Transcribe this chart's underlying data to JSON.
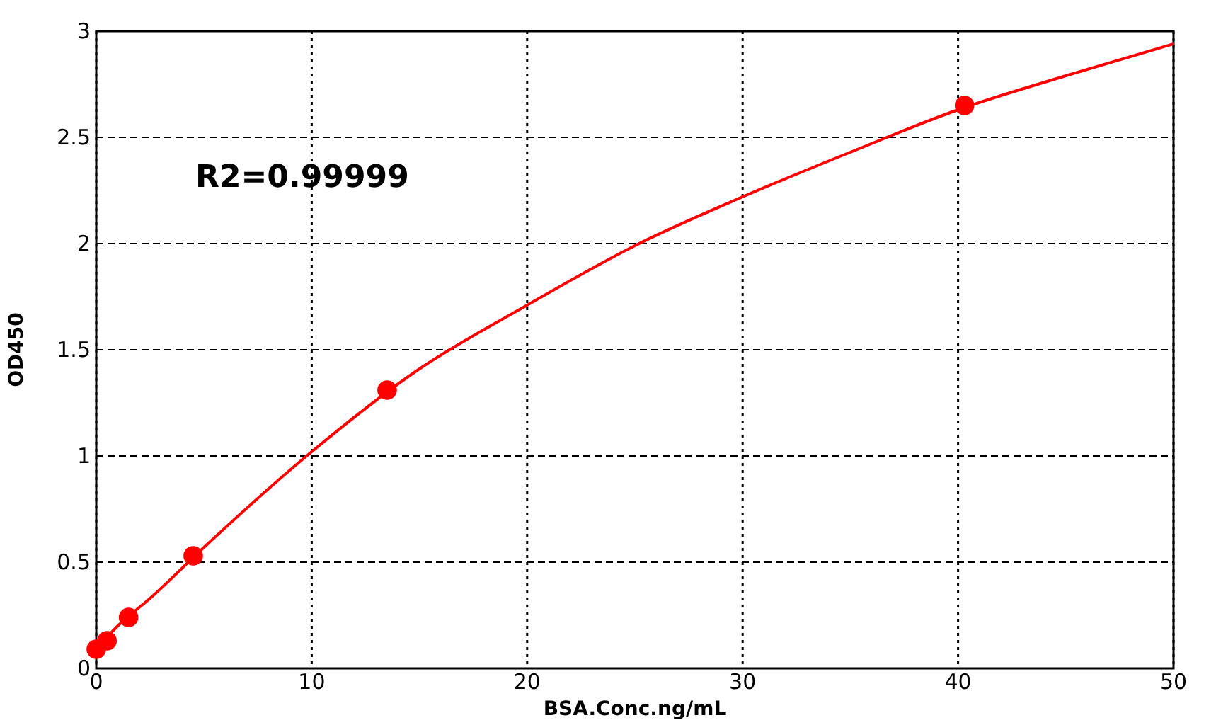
{
  "chart_data": {
    "type": "scatter",
    "xlabel": "BSA.Conc.ng/mL",
    "ylabel": "OD450",
    "xlim": [
      0,
      50
    ],
    "xticks": [
      0,
      10,
      20,
      30,
      40,
      50
    ],
    "ylim": [
      0,
      3
    ],
    "yticks": [
      0,
      0.5,
      1,
      1.5,
      2,
      2.5,
      3
    ],
    "grid": true,
    "annotations": [
      "R2=0.99999"
    ],
    "series": [
      {
        "type": "line",
        "color": "#ff0000",
        "marker": "none",
        "line_style": "solid",
        "x": [
          0,
          1,
          2.5,
          5,
          10,
          15,
          20,
          25,
          30,
          35,
          40,
          45,
          50
        ],
        "values": [
          0.09,
          0.2,
          0.33,
          0.57,
          1.02,
          1.41,
          1.71,
          1.99,
          2.22,
          2.43,
          2.63,
          2.79,
          2.94
        ]
      },
      {
        "color": "#ff0000",
        "marker": "circle",
        "x": [
          0,
          0.5,
          1.5,
          4.5,
          13.5,
          40.3
        ],
        "values": [
          0.09,
          0.13,
          0.24,
          0.53,
          1.31,
          2.65
        ]
      }
    ]
  }
}
